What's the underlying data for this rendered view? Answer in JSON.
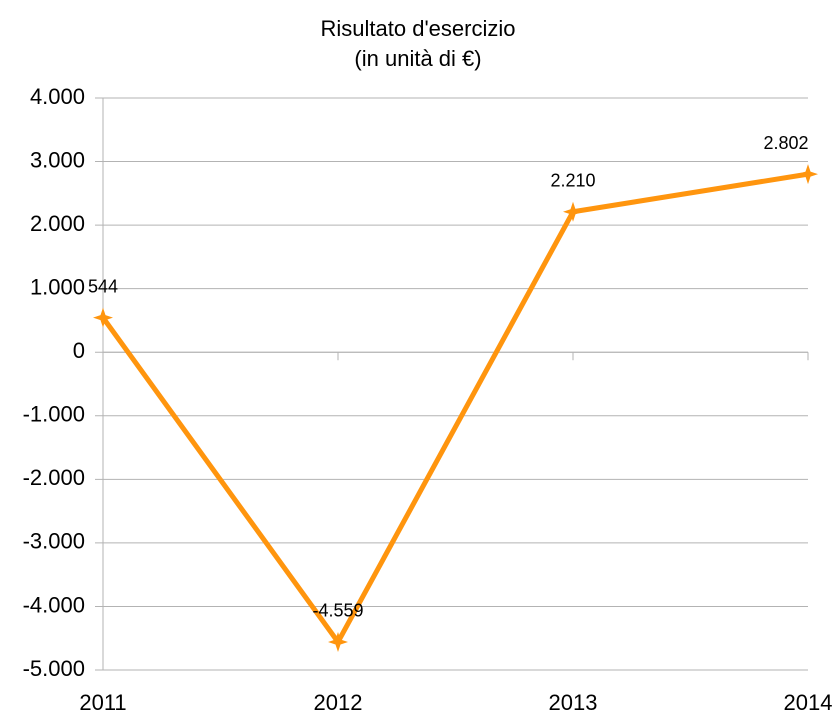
{
  "chart_data": {
    "type": "line",
    "title": "Risultato d'esercizio",
    "subtitle": "(in unità di €)",
    "categories": [
      "2011",
      "2012",
      "2013",
      "2014"
    ],
    "values": [
      544,
      -4559,
      2210,
      2802
    ],
    "value_labels": [
      "544",
      "-4.559",
      "2.210",
      "2.802"
    ],
    "color": "#ff950e",
    "ylim": [
      -5000,
      4000
    ],
    "yticks": [
      {
        "value": -5000,
        "label": "-5.000"
      },
      {
        "value": -4000,
        "label": "-4.000"
      },
      {
        "value": -3000,
        "label": "-3.000"
      },
      {
        "value": -2000,
        "label": "-2.000"
      },
      {
        "value": -1000,
        "label": "-1.000"
      },
      0,
      {
        "value": 1000,
        "label": "1.000"
      },
      {
        "value": 2000,
        "label": "2.000"
      },
      {
        "value": 3000,
        "label": "3.000"
      },
      {
        "value": 4000,
        "label": "4.000"
      }
    ],
    "grid": true
  }
}
